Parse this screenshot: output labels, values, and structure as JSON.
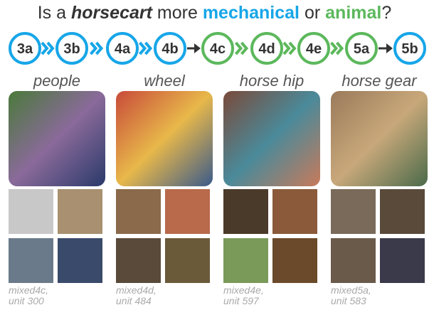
{
  "title": {
    "prefix": "Is a",
    "subject": "horsecart",
    "middle": "more",
    "option1": "mechanical",
    "conj": "or",
    "option2": "animal",
    "suffix": "?"
  },
  "colors": {
    "mechanical": "#17a6e8",
    "animal": "#5cb85c",
    "mixed": "#333333"
  },
  "nodes": [
    {
      "label": "3a",
      "group": "mechanical"
    },
    {
      "label": "3b",
      "group": "mechanical"
    },
    {
      "label": "4a",
      "group": "mechanical"
    },
    {
      "label": "4b",
      "group": "mechanical"
    },
    {
      "label": "4c",
      "group": "animal"
    },
    {
      "label": "4d",
      "group": "animal"
    },
    {
      "label": "4e",
      "group": "animal"
    },
    {
      "label": "5a",
      "group": "animal"
    },
    {
      "label": "5b",
      "group": "mechanical"
    }
  ],
  "columns": [
    {
      "label": "people",
      "caption": [
        "mixed4c,",
        "unit 300"
      ]
    },
    {
      "label": "wheel",
      "caption": [
        "mixed4d,",
        "unit 484"
      ]
    },
    {
      "label": "horse hip",
      "caption": [
        "mixed4e,",
        "unit 597"
      ]
    },
    {
      "label": "horse gear",
      "caption": [
        "mixed5a,",
        "unit 583"
      ]
    }
  ]
}
